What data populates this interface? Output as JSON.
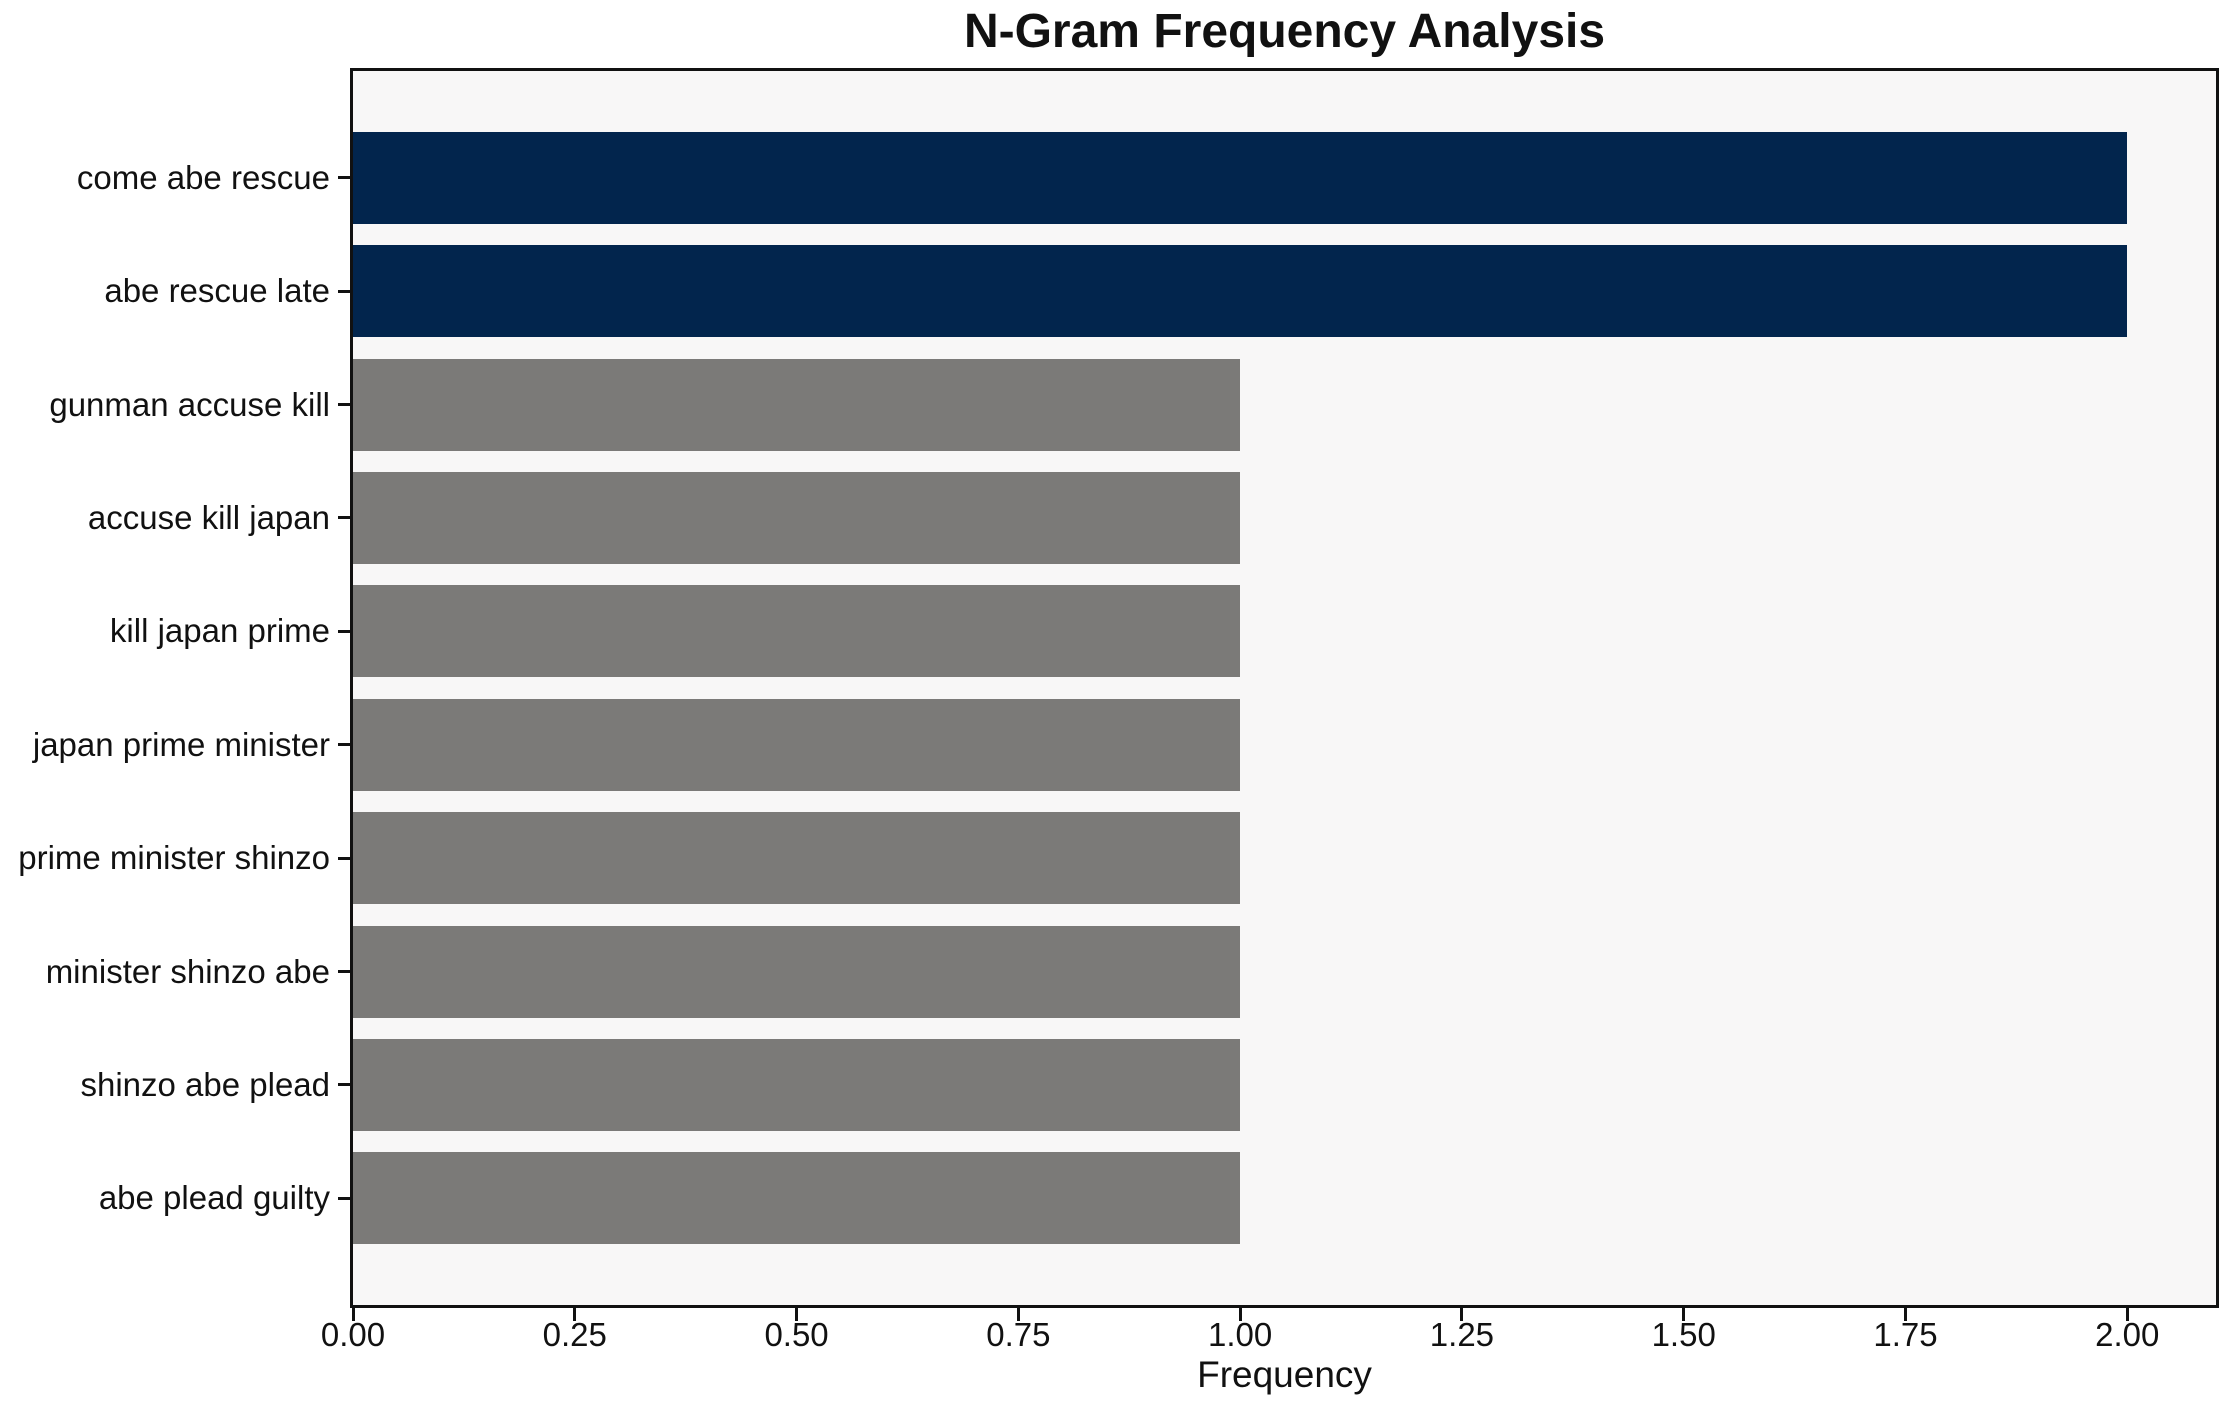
{
  "chart_data": {
    "type": "bar",
    "orientation": "horizontal",
    "title": "N-Gram Frequency Analysis",
    "xlabel": "Frequency",
    "ylabel": "",
    "categories": [
      "come abe rescue",
      "abe rescue late",
      "gunman accuse kill",
      "accuse kill japan",
      "kill japan prime",
      "japan prime minister",
      "prime minister shinzo",
      "minister shinzo abe",
      "shinzo abe plead",
      "abe plead guilty"
    ],
    "values": [
      2,
      2,
      1,
      1,
      1,
      1,
      1,
      1,
      1,
      1
    ],
    "bar_colors": [
      "#02254d",
      "#02254d",
      "#7b7a78",
      "#7b7a78",
      "#7b7a78",
      "#7b7a78",
      "#7b7a78",
      "#7b7a78",
      "#7b7a78",
      "#7b7a78"
    ],
    "xticks": {
      "values": [
        0,
        0.25,
        0.5,
        0.75,
        1.0,
        1.25,
        1.5,
        1.75,
        2.0
      ],
      "labels": [
        "0.00",
        "0.25",
        "0.50",
        "0.75",
        "1.00",
        "1.25",
        "1.50",
        "1.75",
        "2.00"
      ]
    },
    "xlim": [
      0,
      2.1
    ],
    "grid": false,
    "legend": false,
    "colors": {
      "highlight": "#02254d",
      "muted": "#7b7a78",
      "plot_background": "#f8f7f7",
      "frame": "#111111",
      "text": "#111111",
      "canvas_background": "#ffffff"
    }
  }
}
